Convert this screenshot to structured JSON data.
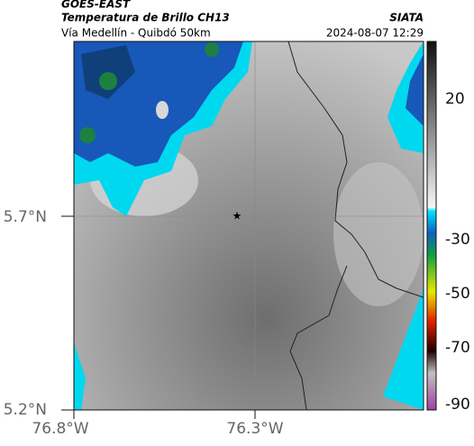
{
  "header": {
    "source": "GOES-EAST",
    "title": "Temperatura de Brillo CH13",
    "subtitle": "Vía Medellín - Quibdó 50km",
    "agency": "SIATA",
    "timestamp": "2024-08-07 12:29"
  },
  "axes": {
    "lat_labels": [
      "5.7°N",
      "5.2°N"
    ],
    "lon_labels": [
      "76.8°W",
      "76.3°W"
    ]
  },
  "colorbar": {
    "ticks": [
      "20",
      "-30",
      "-50",
      "-70",
      "-90"
    ]
  }
}
